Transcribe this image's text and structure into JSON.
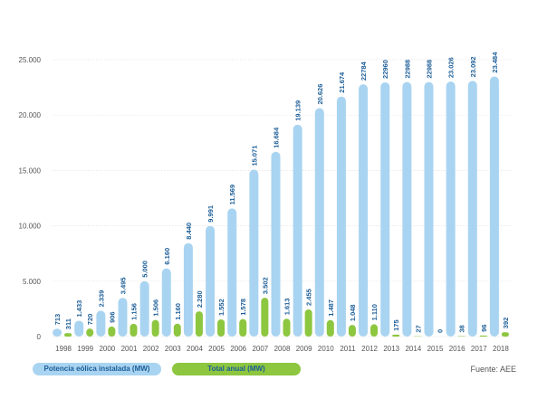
{
  "chart_data": {
    "type": "bar",
    "categories": [
      "1998",
      "1999",
      "2000",
      "2001",
      "2002",
      "2003",
      "2004",
      "2005",
      "2006",
      "2007",
      "2008",
      "2009",
      "2010",
      "2011",
      "2012",
      "2013",
      "2014",
      "2015",
      "2016",
      "2017",
      "2018"
    ],
    "series": [
      {
        "name": "Potencia eólica instalada (MW)",
        "values": [
          713,
          1433,
          2339,
          3495,
          5000,
          6160,
          8440,
          9991,
          11569,
          15071,
          16684,
          19139,
          20626,
          21674,
          22784,
          22960,
          22988,
          22988,
          23026,
          23092,
          23484
        ],
        "labels": [
          "713",
          "1.433",
          "2.339",
          "3.495",
          "5.000",
          "6.160",
          "8.440",
          "9.991",
          "11.569",
          "15.071",
          "16.684",
          "19.139",
          "20.626",
          "21.674",
          "22784",
          "22960",
          "22988",
          "22988",
          "23.026",
          "23.092",
          "23.484"
        ],
        "color": "#a9d4f1"
      },
      {
        "name": "Total anual (MW)",
        "values": [
          311,
          720,
          906,
          1156,
          1506,
          1160,
          2280,
          1552,
          1578,
          3502,
          1613,
          2455,
          1487,
          1048,
          1110,
          175,
          27,
          0,
          38,
          96,
          392
        ],
        "labels": [
          "311",
          "720",
          "906",
          "1.156",
          "1.506",
          "1.160",
          "2.280",
          "1.552",
          "1.578",
          "3.502",
          "1.613",
          "2.455",
          "1.487",
          "1.048",
          "1.110",
          "175",
          "27",
          "0",
          "38",
          "96",
          "392"
        ],
        "color": "#8dc63f"
      }
    ],
    "yticks": [
      0,
      5000,
      10000,
      15000,
      20000,
      25000
    ],
    "ytick_labels": [
      "0",
      "5.000",
      "10.000",
      "15.000",
      "20.000",
      "25.000"
    ],
    "ylim": [
      0,
      25000
    ],
    "title": "",
    "xlabel": "",
    "ylabel": "",
    "grid": true,
    "label_color": "#1a5c96",
    "legend_position": "bottom-left"
  },
  "legend": {
    "installed": "Potencia eólica instalada (MW)",
    "annual": "Total anual (MW)"
  },
  "source": "Fuente: AEE"
}
